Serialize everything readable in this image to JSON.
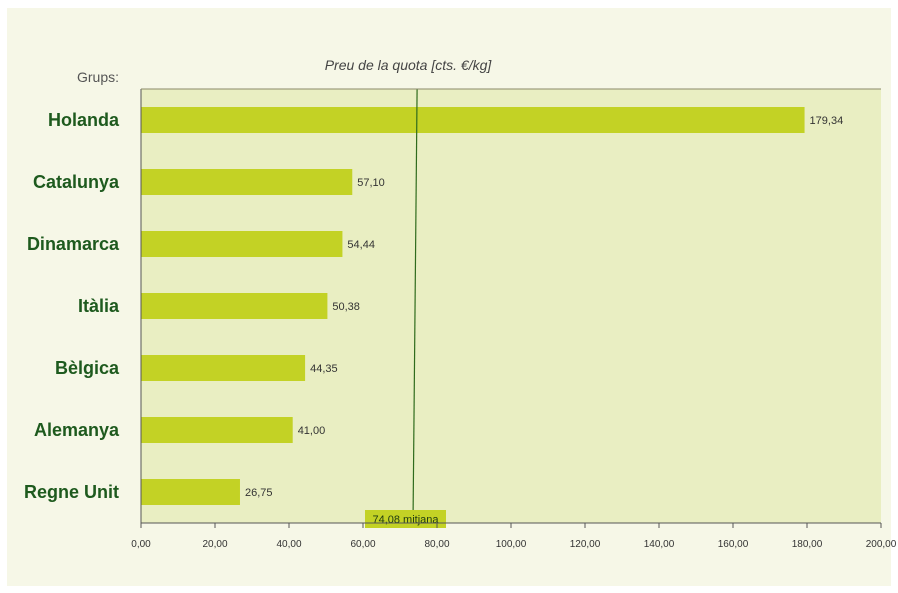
{
  "chart_data": {
    "type": "bar",
    "orientation": "horizontal",
    "title": "Preu de la quota [cts. €/kg]",
    "category_axis_title": "Grups:",
    "categories": [
      "Holanda",
      "Catalunya",
      "Dinamarca",
      "Itàlia",
      "Bèlgica",
      "Alemanya",
      "Regne Unit"
    ],
    "values": [
      179.34,
      57.1,
      54.44,
      50.38,
      44.35,
      41.0,
      26.75
    ],
    "value_labels": [
      "179,34",
      "57,10",
      "54,44",
      "50,38",
      "44,35",
      "41,00",
      "26,75"
    ],
    "xlim": [
      0,
      200
    ],
    "x_ticks": [
      0,
      20,
      40,
      60,
      80,
      100,
      120,
      140,
      160,
      180,
      200
    ],
    "x_tick_labels": [
      "0,00",
      "20,00",
      "40,00",
      "60,00",
      "80,00",
      "100,00",
      "120,00",
      "140,00",
      "160,00",
      "180,00",
      "200,00"
    ],
    "reference_line": {
      "value": 74.08,
      "label": "74,08 mitjana"
    },
    "grid": false,
    "colors": {
      "bar": "#c3d225",
      "plot_background": "#e9eec2",
      "frame_background": "#f6f7e7",
      "category_text": "#1e5a1e",
      "reference_line": "#2f6b1c",
      "axis": "#555555"
    }
  }
}
